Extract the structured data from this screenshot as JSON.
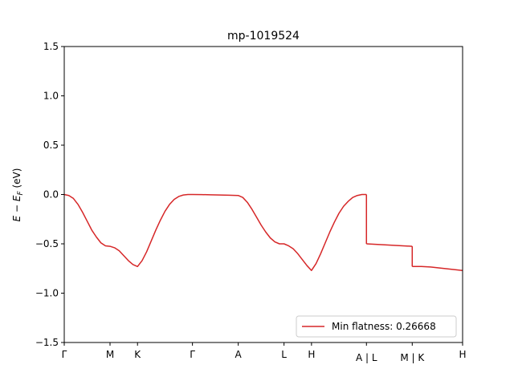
{
  "chart_data": {
    "type": "line",
    "title": "mp-1019524",
    "ylabel": "E − E_F (eV)",
    "ylabel_main": "E − E",
    "ylabel_sub": "F",
    "ylabel_unit": " (eV)",
    "xlabel": "",
    "ylim": [
      -1.5,
      1.5
    ],
    "yticks": [
      1.5,
      1.0,
      0.5,
      0.0,
      -0.5,
      -1.0,
      -1.5
    ],
    "ytick_labels": [
      "1.5",
      "1.0",
      "0.5",
      "0.0",
      "−0.5",
      "−1.0",
      "−1.5"
    ],
    "xlim": [
      0,
      8.7
    ],
    "xticks": [
      {
        "x": 0.0,
        "label": "Γ"
      },
      {
        "x": 1.0,
        "label": "M"
      },
      {
        "x": 1.6,
        "label": "K"
      },
      {
        "x": 2.8,
        "label": "Γ"
      },
      {
        "x": 3.8,
        "label": "A"
      },
      {
        "x": 4.8,
        "label": "L"
      },
      {
        "x": 5.4,
        "label": "H"
      },
      {
        "x": 6.6,
        "label": "A | L"
      },
      {
        "x": 7.6,
        "label": "M | K"
      },
      {
        "x": 8.7,
        "label": "H"
      }
    ],
    "grid": false,
    "legend_position": "lower-right",
    "series": [
      {
        "name": "Min flatness: 0.26668",
        "color": "#d62728",
        "segments": [
          [
            [
              0.0,
              0.0
            ],
            [
              0.1,
              -0.01
            ],
            [
              0.2,
              -0.04
            ],
            [
              0.3,
              -0.1
            ],
            [
              0.4,
              -0.18
            ],
            [
              0.5,
              -0.27
            ],
            [
              0.6,
              -0.36
            ],
            [
              0.7,
              -0.43
            ],
            [
              0.8,
              -0.49
            ],
            [
              0.9,
              -0.52
            ],
            [
              1.0,
              -0.525
            ],
            [
              1.1,
              -0.54
            ],
            [
              1.2,
              -0.57
            ],
            [
              1.3,
              -0.62
            ],
            [
              1.4,
              -0.67
            ],
            [
              1.5,
              -0.71
            ],
            [
              1.6,
              -0.73
            ],
            [
              1.7,
              -0.67
            ],
            [
              1.8,
              -0.58
            ],
            [
              1.9,
              -0.47
            ],
            [
              2.0,
              -0.36
            ],
            [
              2.1,
              -0.26
            ],
            [
              2.2,
              -0.17
            ],
            [
              2.3,
              -0.1
            ],
            [
              2.4,
              -0.05
            ],
            [
              2.5,
              -0.02
            ],
            [
              2.6,
              -0.005
            ],
            [
              2.7,
              0.0
            ],
            [
              2.8,
              0.0
            ],
            [
              3.0,
              -0.001
            ],
            [
              3.2,
              -0.003
            ],
            [
              3.4,
              -0.005
            ],
            [
              3.6,
              -0.007
            ],
            [
              3.8,
              -0.01
            ],
            [
              3.9,
              -0.03
            ],
            [
              4.0,
              -0.08
            ],
            [
              4.1,
              -0.15
            ],
            [
              4.2,
              -0.23
            ],
            [
              4.3,
              -0.31
            ],
            [
              4.4,
              -0.38
            ],
            [
              4.5,
              -0.44
            ],
            [
              4.6,
              -0.48
            ],
            [
              4.7,
              -0.5
            ],
            [
              4.8,
              -0.5
            ],
            [
              4.9,
              -0.52
            ],
            [
              5.0,
              -0.55
            ],
            [
              5.1,
              -0.6
            ],
            [
              5.2,
              -0.66
            ],
            [
              5.3,
              -0.72
            ],
            [
              5.4,
              -0.77
            ],
            [
              5.5,
              -0.7
            ],
            [
              5.6,
              -0.6
            ],
            [
              5.7,
              -0.49
            ],
            [
              5.8,
              -0.38
            ],
            [
              5.9,
              -0.28
            ],
            [
              6.0,
              -0.19
            ],
            [
              6.1,
              -0.12
            ],
            [
              6.2,
              -0.07
            ],
            [
              6.3,
              -0.03
            ],
            [
              6.4,
              -0.01
            ],
            [
              6.5,
              0.0
            ],
            [
              6.6,
              0.0
            ]
          ],
          [
            [
              6.6,
              -0.5
            ],
            [
              6.8,
              -0.505
            ],
            [
              7.0,
              -0.51
            ],
            [
              7.2,
              -0.515
            ],
            [
              7.4,
              -0.52
            ],
            [
              7.6,
              -0.525
            ]
          ],
          [
            [
              7.6,
              -0.73
            ],
            [
              7.8,
              -0.73
            ],
            [
              8.0,
              -0.735
            ],
            [
              8.2,
              -0.745
            ],
            [
              8.4,
              -0.755
            ],
            [
              8.6,
              -0.765
            ],
            [
              8.7,
              -0.77
            ]
          ]
        ]
      }
    ]
  }
}
